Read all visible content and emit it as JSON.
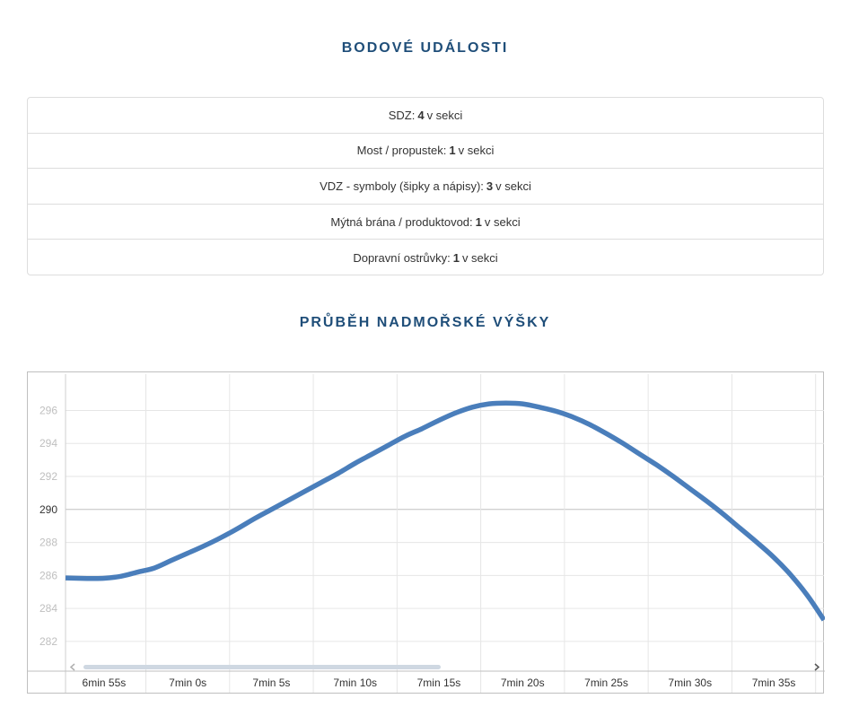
{
  "events": {
    "title": "BODOVÉ UDÁLOSTI",
    "rows": [
      {
        "prefix": "SDZ:",
        "count": "4",
        "suffix": "v sekci"
      },
      {
        "prefix": "Most / propustek:",
        "count": "1",
        "suffix": "v sekci"
      },
      {
        "prefix": "VDZ - symboly (šipky a nápisy):",
        "count": "3",
        "suffix": "v sekci"
      },
      {
        "prefix": "Mýtná brána / produktovod:",
        "count": "1",
        "suffix": "v sekci"
      },
      {
        "prefix": "Dopravní ostrůvky:",
        "count": "1",
        "suffix": "v sekci"
      }
    ]
  },
  "elevation": {
    "title": "PRŮBĚH NADMOŘSKÉ VÝŠKY"
  },
  "colors": {
    "title": "#1f4e79",
    "series": "#4a7ebb",
    "grid": "#e6e6e6",
    "reference_line": "#c0c0c0"
  },
  "chart_data": {
    "type": "line",
    "title": "",
    "xlabel": "",
    "ylabel": "",
    "grid": true,
    "legend": "none",
    "ylim": [
      280.2,
      298.2
    ],
    "yticks": [
      "282",
      "284",
      "286",
      "288",
      "290",
      "292",
      "294",
      "296"
    ],
    "emphasized_ytick": "290",
    "xticks": [
      "6min 55s",
      "7min 0s",
      "7min 5s",
      "7min 10s",
      "7min 15s",
      "7min 20s",
      "7min 25s",
      "7min 30s",
      "7min 35s"
    ],
    "xticks_seconds": [
      415,
      420,
      425,
      430,
      435,
      440,
      445,
      450,
      455
    ],
    "xlim_seconds": [
      412.7,
      458
    ],
    "series": [
      {
        "x_seconds": [
          412.7,
          414,
          415,
          416,
          417,
          418,
          419,
          420,
          421,
          422,
          423,
          424,
          425,
          426,
          427,
          428,
          429,
          430,
          431,
          432,
          433,
          434,
          435,
          436,
          437,
          438,
          439,
          440,
          441,
          442,
          443,
          444,
          445,
          446,
          447,
          448,
          449,
          450,
          451,
          452,
          453,
          454,
          455,
          456,
          457,
          458
        ],
        "y": [
          285.85,
          285.82,
          285.83,
          285.95,
          286.2,
          286.45,
          286.9,
          287.35,
          287.8,
          288.3,
          288.85,
          289.45,
          290.0,
          290.55,
          291.1,
          291.65,
          292.2,
          292.8,
          293.35,
          293.9,
          294.45,
          294.9,
          295.4,
          295.85,
          296.2,
          296.4,
          296.45,
          296.4,
          296.2,
          295.95,
          295.6,
          295.15,
          294.6,
          294.0,
          293.35,
          292.7,
          292.0,
          291.25,
          290.5,
          289.7,
          288.85,
          288.0,
          287.1,
          286.05,
          284.8,
          283.3
        ]
      }
    ]
  }
}
